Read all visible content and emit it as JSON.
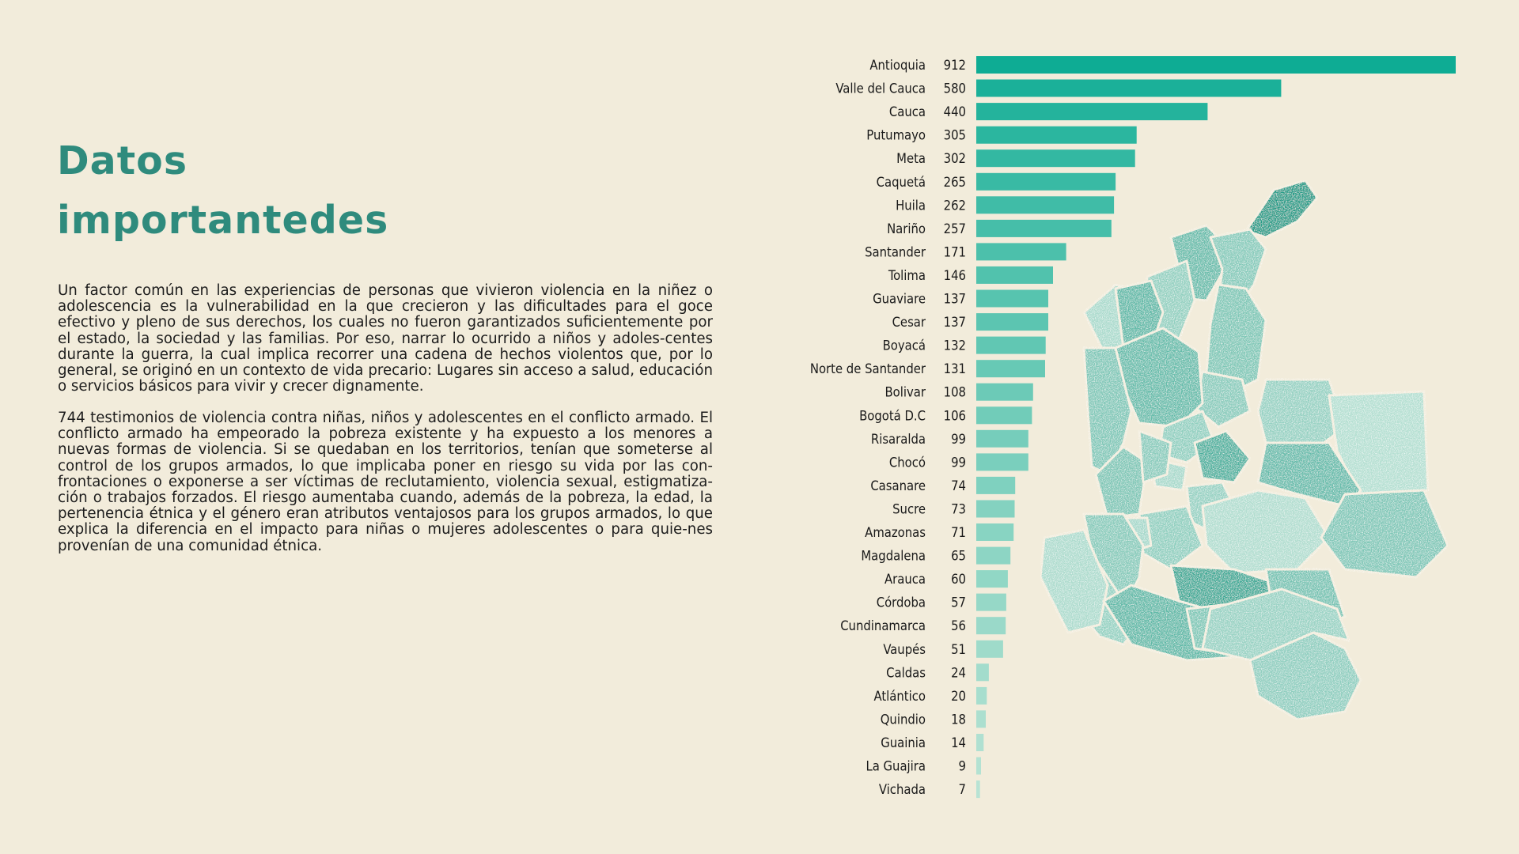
{
  "page": {
    "title_line1": "Datos",
    "title_line2": "importantedes",
    "paragraph1": "Un factor común en las experiencias de personas que vivieron violencia en la niñez o adolescencia es la vulnerabilidad en la que crecieron y las dificultades para el goce efectivo y pleno de sus derechos, los cuales no fueron garantizados suficientemente por el estado, la sociedad y las familias. Por eso, narrar lo ocurrido a niños y adoles-centes durante la guerra, la cual implica recorrer una cadena de hechos violentos que, por lo general, se originó en un contexto de vida precario: Lugares sin acceso a salud, educación o servicios básicos para vivir y crecer dignamente.",
    "paragraph2": "744 testimonios de violencia contra niñas, niños y adolescentes en el conflicto armado. El conflicto armado ha empeorado la pobreza existente y ha expuesto a los menores a nuevas formas de violencia. Si se quedaban en los territorios, tenían que someterse al control de los grupos armados, lo que implicaba poner en riesgo su vida por las con-frontaciones o exponerse a ser víctimas de reclutamiento, violencia sexual, estigmatiza-ción o trabajos forzados. El riesgo aumentaba cuando, además de la pobreza, la edad, la pertenencia étnica y el género eran atributos ventajosos para los grupos armados, lo que explica la diferencia en el impacto para niñas o mujeres adolescentes o para quie-nes provenían de una comunidad étnica."
  },
  "colors": {
    "background": "#f2ecdb",
    "title": "#2f8b7d",
    "bar_dark": "#0eac94",
    "bar_light": "#b8e3d4",
    "map_dark": "#1a9b86",
    "map_light": "#c6e7da"
  },
  "chart_data": {
    "type": "bar",
    "orientation": "horizontal",
    "title": "",
    "xlabel": "",
    "ylabel": "",
    "categories": [
      "Antioquia",
      "Valle del Cauca",
      "Cauca",
      "Putumayo",
      "Meta",
      "Caquetá",
      "Huila",
      "Nariño",
      "Santander",
      "Tolima",
      "Guaviare",
      "Cesar",
      "Boyacá",
      "Norte de Santander",
      "Bolivar",
      "Bogotá D.C",
      "Risaralda",
      "Chocó",
      "Casanare",
      "Sucre",
      "Amazonas",
      "Magdalena",
      "Arauca",
      "Córdoba",
      "Cundinamarca",
      "Vaupés",
      "Caldas",
      "Atlántico",
      "Quindio",
      "Guainia",
      "La Guajira",
      "Vichada"
    ],
    "values": [
      912,
      580,
      440,
      305,
      302,
      265,
      262,
      257,
      171,
      146,
      137,
      137,
      132,
      131,
      108,
      106,
      99,
      99,
      74,
      73,
      71,
      65,
      60,
      57,
      56,
      51,
      24,
      20,
      18,
      14,
      9,
      7
    ],
    "value_labels_shown": true,
    "xlim": [
      0,
      912
    ],
    "grid": false,
    "legend": "none"
  },
  "map": {
    "name": "colombia-departments-map",
    "encoding": "department fill shade by value"
  }
}
